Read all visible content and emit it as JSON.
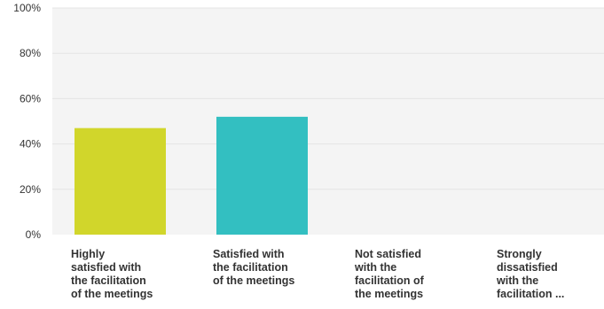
{
  "chart_data": {
    "type": "bar",
    "categories": [
      [
        "Highly",
        "satisfied with",
        "the facilitation",
        "of the meetings"
      ],
      [
        "Satisfied with",
        "the facilitation",
        "of the meetings"
      ],
      [
        "Not satisfied",
        "with the",
        "facilitation of",
        "the meetings"
      ],
      [
        "Strongly",
        "dissatisfied",
        "with the",
        "facilitation ..."
      ]
    ],
    "values": [
      47,
      52,
      0,
      0
    ],
    "colors": [
      "#d1d62b",
      "#33bfc1",
      "#999999",
      "#999999"
    ],
    "ylim": [
      0,
      100
    ],
    "yticks": [
      {
        "value": 0,
        "label": "0%"
      },
      {
        "value": 20,
        "label": "20%"
      },
      {
        "value": 40,
        "label": "40%"
      },
      {
        "value": 60,
        "label": "60%"
      },
      {
        "value": 80,
        "label": "80%"
      },
      {
        "value": 100,
        "label": "100%"
      }
    ],
    "grid": true,
    "grid_color": "#e4e4e4",
    "background": "#f4f4f4"
  }
}
